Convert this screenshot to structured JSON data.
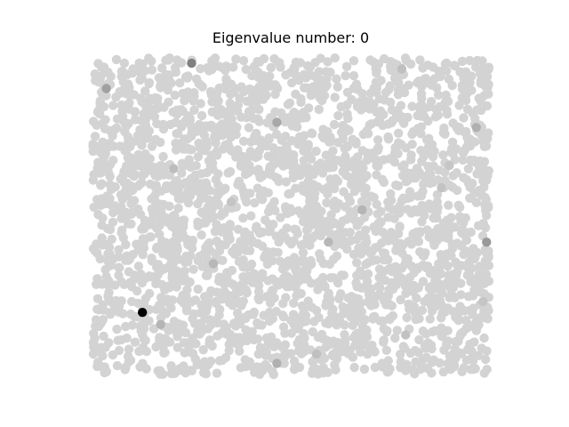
{
  "chart_data": {
    "type": "scatter",
    "title": "Eigenvalue number: 0",
    "xlabel": "",
    "ylabel": "",
    "axes_visible": false,
    "grid": false,
    "legend": "none",
    "xlim": [
      0,
      1
    ],
    "ylim": [
      0,
      1
    ],
    "point_count": 2600,
    "distribution": "uniform random",
    "base_color": "#d3d3d3",
    "highlight_points": [
      {
        "x": 0.126,
        "y": 0.196,
        "color": "#000000"
      },
      {
        "x": 0.25,
        "y": 0.983,
        "color": "#808080"
      },
      {
        "x": 0.035,
        "y": 0.903,
        "color": "#a0a0a0"
      },
      {
        "x": 0.465,
        "y": 0.796,
        "color": "#a8a8a8"
      },
      {
        "x": 0.968,
        "y": 0.78,
        "color": "#b0b0b0"
      },
      {
        "x": 0.205,
        "y": 0.65,
        "color": "#bdbdbd"
      },
      {
        "x": 0.68,
        "y": 0.52,
        "color": "#b5b5b5"
      },
      {
        "x": 0.994,
        "y": 0.418,
        "color": "#9a9a9a"
      },
      {
        "x": 0.595,
        "y": 0.418,
        "color": "#b8b8b8"
      },
      {
        "x": 0.305,
        "y": 0.35,
        "color": "#b8b8b8"
      },
      {
        "x": 0.172,
        "y": 0.158,
        "color": "#b5b5b5"
      },
      {
        "x": 0.465,
        "y": 0.035,
        "color": "#b0b0b0"
      },
      {
        "x": 0.565,
        "y": 0.065,
        "color": "#c0c0c0"
      },
      {
        "x": 0.79,
        "y": 0.125,
        "color": "#c2c2c2"
      },
      {
        "x": 0.985,
        "y": 0.23,
        "color": "#c5c5c5"
      },
      {
        "x": 0.88,
        "y": 0.59,
        "color": "#c3c3c3"
      },
      {
        "x": 0.9,
        "y": 0.66,
        "color": "#c6c6c6"
      },
      {
        "x": 0.35,
        "y": 0.545,
        "color": "#c4c4c4"
      },
      {
        "x": 0.78,
        "y": 0.965,
        "color": "#c0c0c0"
      }
    ]
  }
}
